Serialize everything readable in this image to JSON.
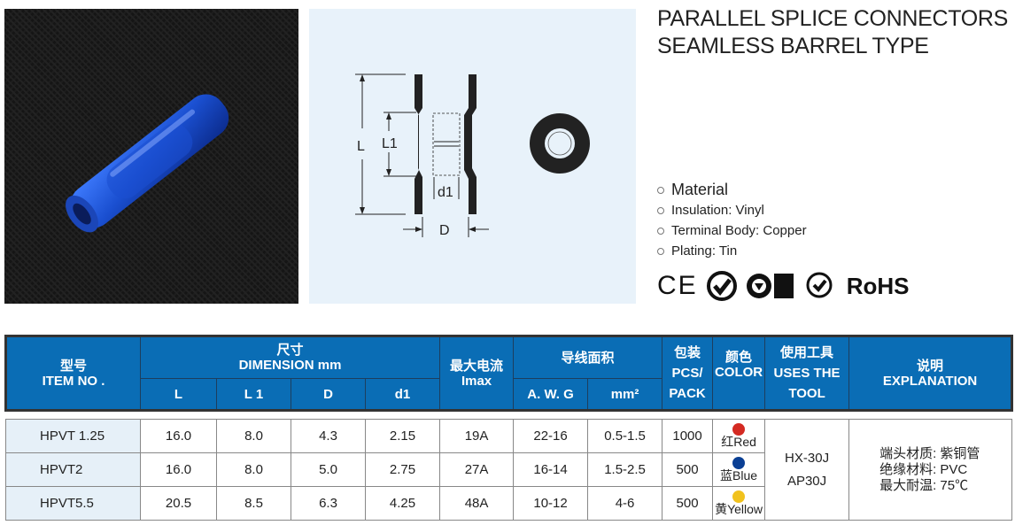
{
  "title": [
    "PARALLEL SPLICE CONNECTORS",
    "SEAMLESS BARREL TYPE"
  ],
  "drawing": {
    "labels": {
      "L": "L",
      "L1": "L1",
      "d1": "d1",
      "D": "D"
    }
  },
  "material": {
    "heading": "Material",
    "items": [
      "Insulation: Vinyl",
      "Terminal Body: Copper",
      "Plating: Tin"
    ]
  },
  "certs": {
    "ce": "CE",
    "rohs": "RoHS"
  },
  "colors": {
    "header": "#0a6db5",
    "item_bg": "#e6f0f8",
    "product": "#1a4fd0"
  },
  "table": {
    "headers": {
      "item": [
        "型号",
        "ITEM NO ."
      ],
      "dimension": [
        "尺寸",
        "DIMENSION mm"
      ],
      "dims": [
        "L",
        "L 1",
        "D",
        "d1"
      ],
      "imax": [
        "最大电流",
        "Imax"
      ],
      "wire": "导线面积",
      "wire_sub": [
        "A. W. G",
        "mm²"
      ],
      "pack": [
        "包装",
        "PCS/",
        "PACK"
      ],
      "color": [
        "颜色",
        "COLOR"
      ],
      "tool": [
        "使用工具",
        "USES THE",
        "TOOL"
      ],
      "expl": [
        "说明",
        "EXPLANATION"
      ]
    },
    "rows": [
      {
        "item": "HPVT 1.25",
        "L": "16.0",
        "L1": "8.0",
        "D": "4.3",
        "d1": "2.15",
        "imax": "19A",
        "awg": "22-16",
        "mm2": "0.5-1.5",
        "pack": "1000",
        "color": "红Red",
        "hex": "#d42a22"
      },
      {
        "item": "HPVT2",
        "L": "16.0",
        "L1": "8.0",
        "D": "5.0",
        "d1": "2.75",
        "imax": "27A",
        "awg": "16-14",
        "mm2": "1.5-2.5",
        "pack": "500",
        "color": "蓝Blue",
        "hex": "#0a3f94"
      },
      {
        "item": "HPVT5.5",
        "L": "20.5",
        "L1": "8.5",
        "D": "6.3",
        "d1": "4.25",
        "imax": "48A",
        "awg": "10-12",
        "mm2": "4-6",
        "pack": "500",
        "color": "黄Yellow",
        "hex": "#f1c21d"
      }
    ],
    "tool": [
      "HX-30J",
      "AP30J"
    ],
    "explanation": [
      "端头材质: 紫铜管",
      "绝缘材料: PVC",
      "最大耐温: 75℃"
    ]
  }
}
